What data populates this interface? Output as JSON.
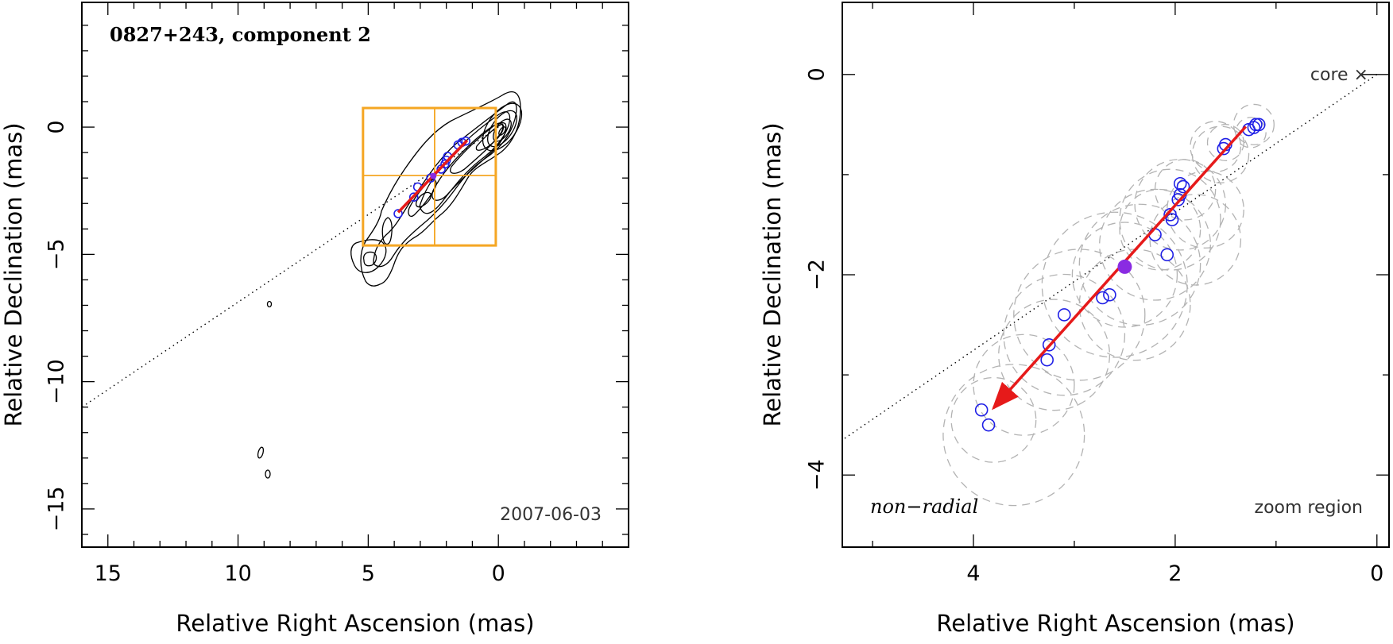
{
  "colors": {
    "frame": "#000000",
    "contour": "#000000",
    "box": "#f5a623",
    "component": "#1f1fe6",
    "vector": "#e61a1a",
    "mean_point": "#8a2be2",
    "fit_circle": "#b3b3b3",
    "radial_line": "#000000"
  },
  "chart_data": [
    {
      "type": "scatter",
      "panel": "left",
      "title": "0827+243, component 2",
      "date": "2007-06-03",
      "xlabel": "Relative Right Ascension (mas)",
      "ylabel": "Relative Declination (mas)",
      "xlim": [
        16,
        -5
      ],
      "ylim": [
        -16.5,
        4.9
      ],
      "xticks": [
        15,
        10,
        5,
        0
      ],
      "yticks": [
        0,
        -5,
        -10,
        -15
      ],
      "x_tick_labels": [
        "15",
        "10",
        "5",
        "0"
      ],
      "y_tick_labels": [
        "0",
        "−5",
        "−10",
        "−15"
      ],
      "zoom_box": {
        "x": [
          5.2,
          0.1
        ],
        "y": [
          0.75,
          -4.65
        ],
        "x_mid": 2.45,
        "y_mid": -1.9
      },
      "radial_line": {
        "from": [
          0,
          0
        ],
        "to": [
          16,
          -11.0
        ]
      },
      "components": [
        [
          1.25,
          -0.55
        ],
        [
          1.4,
          -0.6
        ],
        [
          1.55,
          -0.7
        ],
        [
          1.95,
          -1.15
        ],
        [
          2.0,
          -1.3
        ],
        [
          2.05,
          -1.45
        ],
        [
          2.2,
          -1.65
        ],
        [
          2.6,
          -2.0
        ],
        [
          3.1,
          -2.35
        ],
        [
          3.25,
          -2.75
        ],
        [
          3.85,
          -3.4
        ]
      ],
      "mean_position": [
        2.5,
        -1.92
      ],
      "vector": {
        "from": [
          1.2,
          -0.52
        ],
        "to": [
          3.85,
          -3.35
        ]
      }
    },
    {
      "type": "scatter",
      "panel": "right",
      "label": "non−radial",
      "region_label": "zoom region",
      "core_label": "core ×",
      "xlabel": "Relative Right Ascension (mas)",
      "ylabel": "Relative Declination (mas)",
      "xlim": [
        5.3,
        -0.12
      ],
      "ylim": [
        -4.72,
        0.72
      ],
      "xticks": [
        4,
        2,
        0
      ],
      "yticks": [
        0,
        -2,
        -4
      ],
      "x_tick_labels": [
        "4",
        "2",
        "0"
      ],
      "y_tick_labels": [
        "0",
        "−2",
        "−4"
      ],
      "radial_line": {
        "from": [
          0,
          0
        ],
        "to": [
          5.3,
          -3.65
        ]
      },
      "components": [
        [
          1.2,
          -0.5
        ],
        [
          1.17,
          -0.5
        ],
        [
          1.22,
          -0.53
        ],
        [
          1.27,
          -0.55
        ],
        [
          1.5,
          -0.7
        ],
        [
          1.52,
          -0.74
        ],
        [
          1.95,
          -1.09
        ],
        [
          1.92,
          -1.12
        ],
        [
          1.95,
          -1.2
        ],
        [
          1.97,
          -1.25
        ],
        [
          2.05,
          -1.4
        ],
        [
          2.03,
          -1.45
        ],
        [
          2.2,
          -1.6
        ],
        [
          2.08,
          -1.8
        ],
        [
          2.65,
          -2.2
        ],
        [
          2.72,
          -2.23
        ],
        [
          3.1,
          -2.4
        ],
        [
          3.25,
          -2.7
        ],
        [
          3.27,
          -2.85
        ],
        [
          3.92,
          -3.35
        ],
        [
          3.85,
          -3.5
        ]
      ],
      "mean_position": [
        2.5,
        -1.92
      ],
      "vector": {
        "from": [
          1.3,
          -0.52
        ],
        "to": [
          3.8,
          -3.33
        ]
      },
      "fit_circles": [
        {
          "x": 1.22,
          "y": -0.5,
          "r": 0.2
        },
        {
          "x": 1.25,
          "y": -0.58,
          "r": 0.15
        },
        {
          "x": 1.5,
          "y": -0.68,
          "r": 0.18
        },
        {
          "x": 1.6,
          "y": -0.72,
          "r": 0.25
        },
        {
          "x": 1.55,
          "y": -0.8,
          "r": 0.28
        },
        {
          "x": 1.9,
          "y": -1.15,
          "r": 0.3
        },
        {
          "x": 1.95,
          "y": -1.3,
          "r": 0.45
        },
        {
          "x": 1.7,
          "y": -1.35,
          "r": 0.38
        },
        {
          "x": 2.05,
          "y": -1.45,
          "r": 0.5
        },
        {
          "x": 2.15,
          "y": -1.55,
          "r": 0.4
        },
        {
          "x": 1.8,
          "y": -1.65,
          "r": 0.45
        },
        {
          "x": 2.2,
          "y": -1.7,
          "r": 0.55
        },
        {
          "x": 2.35,
          "y": -1.9,
          "r": 0.6
        },
        {
          "x": 2.5,
          "y": -2.0,
          "r": 0.52
        },
        {
          "x": 2.6,
          "y": -2.1,
          "r": 0.72
        },
        {
          "x": 2.95,
          "y": -2.4,
          "r": 0.65
        },
        {
          "x": 3.1,
          "y": -2.6,
          "r": 0.6
        },
        {
          "x": 2.4,
          "y": -2.3,
          "r": 0.55
        },
        {
          "x": 3.2,
          "y": -2.8,
          "r": 0.55
        },
        {
          "x": 3.5,
          "y": -3.1,
          "r": 0.5
        },
        {
          "x": 3.6,
          "y": -3.6,
          "r": 0.7
        },
        {
          "x": 3.8,
          "y": -3.45,
          "r": 0.42
        }
      ]
    }
  ]
}
